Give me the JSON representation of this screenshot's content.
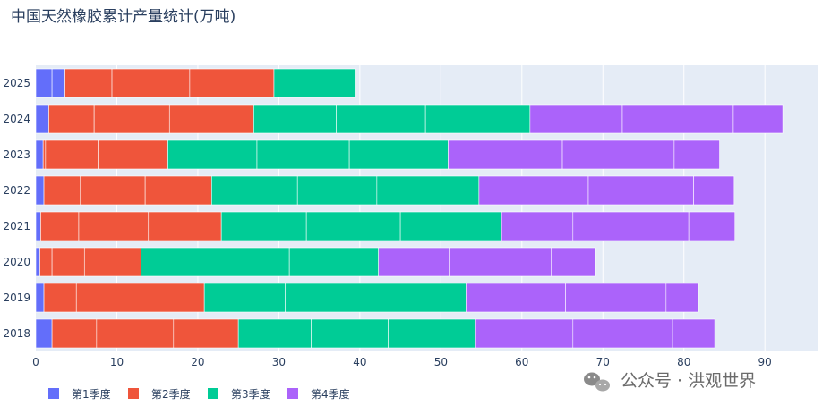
{
  "chart_data": {
    "type": "bar",
    "orientation": "horizontal",
    "barmode": "stack",
    "title": "中国天然橡胶累计产量统计(万吨)",
    "categories": [
      "2018",
      "2019",
      "2020",
      "2021",
      "2022",
      "2023",
      "2024",
      "2025"
    ],
    "xlim": [
      0,
      96.5
    ],
    "x_ticks": [
      0,
      10,
      20,
      30,
      40,
      50,
      60,
      70,
      80,
      90
    ],
    "grid": true,
    "legend_position": "bottom-left",
    "series": [
      {
        "name": "第1季度",
        "color": "#636efa",
        "months": [
          [
            2.0
          ],
          [
            1.0
          ],
          [
            0.5
          ],
          [
            0.6
          ],
          [
            1.0
          ],
          [
            0.9
          ],
          [
            1.6
          ],
          [
            2.0,
            1.6
          ]
        ]
      },
      {
        "name": "第2季度",
        "color": "#ef553b",
        "months": [
          [
            5.5,
            9.5,
            8.0
          ],
          [
            4.0,
            7.0,
            8.8
          ],
          [
            1.5,
            4.0,
            7.0
          ],
          [
            4.7,
            8.6,
            9.0
          ],
          [
            4.5,
            8.0,
            8.2
          ],
          [
            0.3,
            6.5,
            8.6
          ],
          [
            5.6,
            9.3,
            10.4
          ],
          [
            5.8,
            9.6,
            10.4
          ]
        ]
      },
      {
        "name": "第3季度",
        "color": "#00cc96",
        "months": [
          [
            9.0,
            9.5,
            10.8
          ],
          [
            10.0,
            10.8,
            11.5
          ],
          [
            8.5,
            9.8,
            11.0
          ],
          [
            10.5,
            11.6,
            12.5
          ],
          [
            10.6,
            9.8,
            12.6
          ],
          [
            11.0,
            11.4,
            12.2
          ],
          [
            10.2,
            11.0,
            12.9
          ],
          [
            10.0
          ]
        ]
      },
      {
        "name": "第4季度",
        "color": "#ab63fa",
        "months": [
          [
            12.0,
            12.3,
            5.2
          ],
          [
            12.3,
            12.4,
            4.0
          ],
          [
            8.7,
            12.6,
            5.5
          ],
          [
            8.8,
            14.3,
            5.7
          ],
          [
            13.5,
            13.0,
            5.0
          ],
          [
            14.1,
            13.8,
            5.6
          ],
          [
            11.4,
            13.7,
            6.1
          ],
          []
        ]
      }
    ]
  },
  "legend": {
    "items": [
      "第1季度",
      "第2季度",
      "第3季度",
      "第4季度"
    ]
  },
  "watermark": {
    "text": "公众号 · 洪观世界"
  }
}
